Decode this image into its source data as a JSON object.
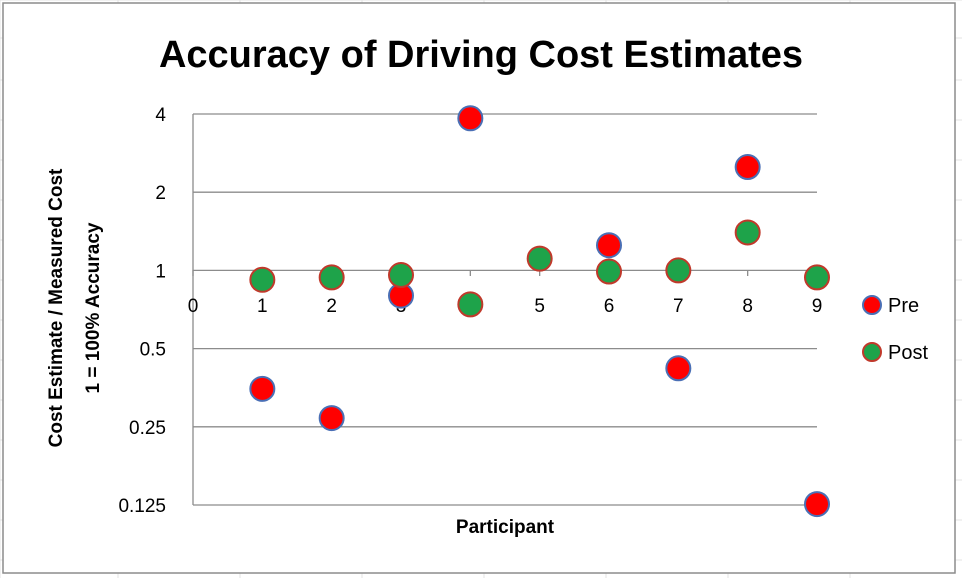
{
  "chart_data": {
    "type": "scatter",
    "title": "Accuracy of Driving Cost Estimates",
    "xlabel": "Participant",
    "ylabel_lines": [
      "Cost Estimate / Measured Cost",
      "1 = 100% Accuracy"
    ],
    "y_scale": "log2",
    "xlim": [
      0,
      9
    ],
    "ylim": [
      0.125,
      4
    ],
    "x_ticks": [
      "0",
      "1",
      "2",
      "3",
      "4",
      "5",
      "6",
      "7",
      "8",
      "9"
    ],
    "y_ticks": [
      {
        "value": 4,
        "label": "4"
      },
      {
        "value": 2,
        "label": "2"
      },
      {
        "value": 1,
        "label": "1"
      },
      {
        "value": 0.5,
        "label": "0.5"
      },
      {
        "value": 0.25,
        "label": "0.25"
      },
      {
        "value": 0.125,
        "label": "0.125"
      }
    ],
    "grid": true,
    "legend_position": "right",
    "series": [
      {
        "name": "Pre",
        "color": "#ff0000",
        "edge_color": "#4a6fb5",
        "points": [
          {
            "x": 1,
            "y": 0.35
          },
          {
            "x": 2,
            "y": 0.27
          },
          {
            "x": 3,
            "y": 0.8
          },
          {
            "x": 4,
            "y": 3.85
          },
          {
            "x": 6,
            "y": 1.25
          },
          {
            "x": 7,
            "y": 0.42
          },
          {
            "x": 8,
            "y": 2.5
          },
          {
            "x": 9,
            "y": 0.126
          }
        ]
      },
      {
        "name": "Post",
        "color": "#1ea34a",
        "edge_color": "#c0392b",
        "points": [
          {
            "x": 1,
            "y": 0.92
          },
          {
            "x": 2,
            "y": 0.94
          },
          {
            "x": 3,
            "y": 0.96
          },
          {
            "x": 4,
            "y": 0.74
          },
          {
            "x": 5,
            "y": 1.11
          },
          {
            "x": 6,
            "y": 0.99
          },
          {
            "x": 7,
            "y": 1.0
          },
          {
            "x": 8,
            "y": 1.4
          },
          {
            "x": 9,
            "y": 0.94
          }
        ]
      }
    ]
  }
}
